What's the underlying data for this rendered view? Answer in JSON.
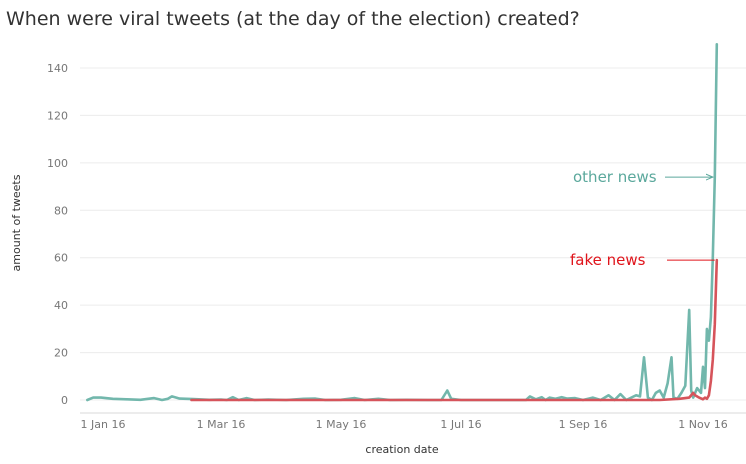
{
  "chart_data": {
    "type": "line",
    "title": "When were viral tweets (at the day of the election) created?",
    "xlabel": "creation date",
    "ylabel": "amount of tweets",
    "ylim": [
      0,
      150
    ],
    "y_ticks": [
      0,
      20,
      40,
      60,
      80,
      100,
      120,
      140
    ],
    "x_ticks": [
      {
        "date": "2016-01-01",
        "label": "1 Jan 16"
      },
      {
        "date": "2016-03-01",
        "label": "1 Mar 16"
      },
      {
        "date": "2016-05-01",
        "label": "1 May 16"
      },
      {
        "date": "2016-07-01",
        "label": "1 Jul 16"
      },
      {
        "date": "2016-09-01",
        "label": "1 Sep 16"
      },
      {
        "date": "2016-11-01",
        "label": "1 Nov 16"
      }
    ],
    "grid": true,
    "series": [
      {
        "name": "other news",
        "color": "#72B7AC",
        "points": [
          [
            "2015-12-24",
            0
          ],
          [
            "2015-12-27",
            1
          ],
          [
            "2015-12-31",
            1
          ],
          [
            "2016-01-06",
            0.5
          ],
          [
            "2016-01-13",
            0.3
          ],
          [
            "2016-01-20",
            0.1
          ],
          [
            "2016-01-27",
            0.8
          ],
          [
            "2016-01-31",
            0
          ],
          [
            "2016-02-03",
            0.5
          ],
          [
            "2016-02-05",
            1.5
          ],
          [
            "2016-02-09",
            0.6
          ],
          [
            "2016-02-16",
            0.4
          ],
          [
            "2016-02-24",
            0.1
          ],
          [
            "2016-03-01",
            0.2
          ],
          [
            "2016-03-04",
            0
          ],
          [
            "2016-03-07",
            1.2
          ],
          [
            "2016-03-10",
            0
          ],
          [
            "2016-03-14",
            0.8
          ],
          [
            "2016-03-18",
            0
          ],
          [
            "2016-03-25",
            0.2
          ],
          [
            "2016-04-03",
            0
          ],
          [
            "2016-04-12",
            0.5
          ],
          [
            "2016-04-18",
            0.6
          ],
          [
            "2016-04-23",
            0
          ],
          [
            "2016-05-01",
            0.1
          ],
          [
            "2016-05-08",
            0.8
          ],
          [
            "2016-05-13",
            0
          ],
          [
            "2016-05-20",
            0.5
          ],
          [
            "2016-05-26",
            0
          ],
          [
            "2016-06-03",
            0.1
          ],
          [
            "2016-06-14",
            0
          ],
          [
            "2016-06-21",
            0
          ],
          [
            "2016-06-24",
            4
          ],
          [
            "2016-06-26",
            0.5
          ],
          [
            "2016-07-01",
            0
          ],
          [
            "2016-07-15",
            0
          ],
          [
            "2016-07-28",
            0
          ],
          [
            "2016-08-03",
            0
          ],
          [
            "2016-08-05",
            1.5
          ],
          [
            "2016-08-08",
            0.3
          ],
          [
            "2016-08-11",
            1.2
          ],
          [
            "2016-08-13",
            0
          ],
          [
            "2016-08-15",
            1
          ],
          [
            "2016-08-18",
            0.5
          ],
          [
            "2016-08-21",
            1.2
          ],
          [
            "2016-08-24",
            0.6
          ],
          [
            "2016-08-28",
            0.8
          ],
          [
            "2016-09-01",
            0
          ],
          [
            "2016-09-06",
            1
          ],
          [
            "2016-09-10",
            0
          ],
          [
            "2016-09-14",
            2
          ],
          [
            "2016-09-17",
            0
          ],
          [
            "2016-09-20",
            2.5
          ],
          [
            "2016-09-23",
            0
          ],
          [
            "2016-09-28",
            2
          ],
          [
            "2016-09-30",
            1.5
          ],
          [
            "2016-10-02",
            18
          ],
          [
            "2016-10-04",
            1
          ],
          [
            "2016-10-06",
            0
          ],
          [
            "2016-10-08",
            3
          ],
          [
            "2016-10-10",
            4
          ],
          [
            "2016-10-12",
            1
          ],
          [
            "2016-10-14",
            7
          ],
          [
            "2016-10-16",
            18
          ],
          [
            "2016-10-17",
            1
          ],
          [
            "2016-10-19",
            0.5
          ],
          [
            "2016-10-21",
            3
          ],
          [
            "2016-10-23",
            6
          ],
          [
            "2016-10-25",
            38
          ],
          [
            "2016-10-26",
            4
          ],
          [
            "2016-10-27",
            1
          ],
          [
            "2016-10-29",
            5
          ],
          [
            "2016-10-30",
            4
          ],
          [
            "2016-10-31",
            3
          ],
          [
            "2016-11-01",
            14
          ],
          [
            "2016-11-02",
            5
          ],
          [
            "2016-11-03",
            30
          ],
          [
            "2016-11-04",
            25
          ],
          [
            "2016-11-05",
            35
          ],
          [
            "2016-11-06",
            60
          ],
          [
            "2016-11-07",
            94
          ],
          [
            "2016-11-08",
            150
          ]
        ]
      },
      {
        "name": "fake news",
        "color": "#D6545B",
        "points": [
          [
            "2016-02-15",
            0
          ],
          [
            "2016-03-01",
            0
          ],
          [
            "2016-05-01",
            0
          ],
          [
            "2016-07-01",
            0
          ],
          [
            "2016-09-01",
            0
          ],
          [
            "2016-10-10",
            0
          ],
          [
            "2016-10-20",
            0.5
          ],
          [
            "2016-10-25",
            1
          ],
          [
            "2016-10-27",
            3
          ],
          [
            "2016-10-28",
            2
          ],
          [
            "2016-10-30",
            1
          ],
          [
            "2016-11-01",
            0.3
          ],
          [
            "2016-11-02",
            1
          ],
          [
            "2016-11-03",
            0.5
          ],
          [
            "2016-11-04",
            2
          ],
          [
            "2016-11-05",
            8
          ],
          [
            "2016-11-06",
            17
          ],
          [
            "2016-11-07",
            32
          ],
          [
            "2016-11-08",
            59
          ]
        ]
      }
    ],
    "annotations": [
      {
        "text": "other news",
        "color": "#5BA89C",
        "series": "other news",
        "x": "2016-11-07",
        "y": 94
      },
      {
        "text": "fake news",
        "color": "#E0141B",
        "series": "fake news",
        "x": "2016-11-08",
        "y": 59
      }
    ]
  }
}
